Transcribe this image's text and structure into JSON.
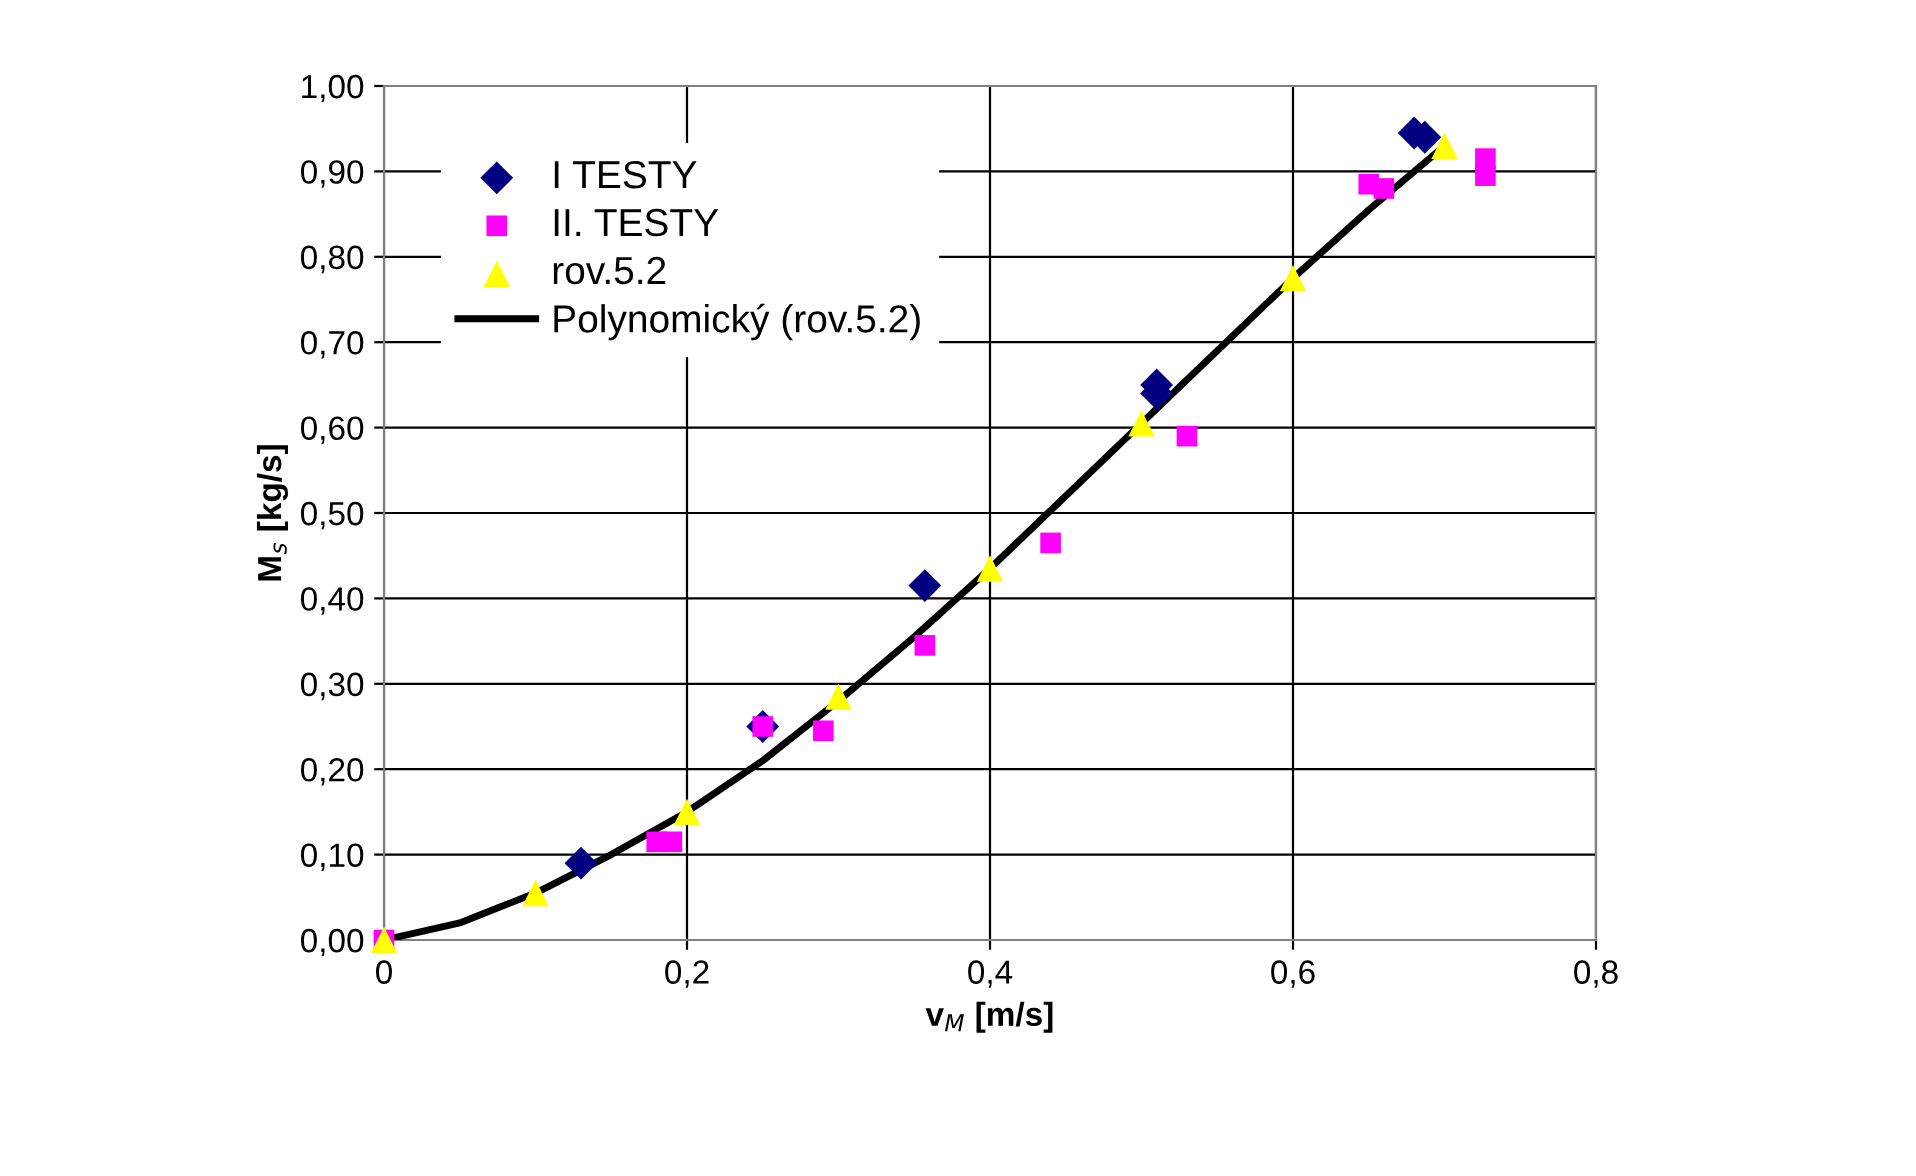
{
  "chart_data": {
    "type": "scatter",
    "xlabel": "v$_{M}$ [m/s]",
    "ylabel": "M$_{s}$ [kg/s]",
    "xlim": [
      0,
      0.8
    ],
    "xticks": [
      0,
      {
        "value": 0.2,
        "label": "0,2"
      },
      {
        "value": 0.4,
        "label": "0,4"
      },
      {
        "value": 0.6,
        "label": "0,6"
      },
      {
        "value": 0.8,
        "label": "0,8"
      }
    ],
    "ylim": [
      0,
      1
    ],
    "yticks": [
      {
        "value": 0,
        "label": "0,00"
      },
      {
        "value": 0.1,
        "label": "0,10"
      },
      {
        "value": 0.2,
        "label": "0,20"
      },
      {
        "value": 0.3,
        "label": "0,30"
      },
      {
        "value": 0.4,
        "label": "0,40"
      },
      {
        "value": 0.5,
        "label": "0,50"
      },
      {
        "value": 0.6,
        "label": "0,60"
      },
      {
        "value": 0.7,
        "label": "0,70"
      },
      {
        "value": 0.8,
        "label": "0,80"
      },
      {
        "value": 0.9,
        "label": "0,90"
      },
      {
        "value": 1,
        "label": "1,00"
      }
    ],
    "grid": true,
    "legend": "top left",
    "series": [
      {
        "name": "I TESTY",
        "color": "#000080",
        "marker": "diamond",
        "x": [
          0.13,
          0.25,
          0.357,
          0.51,
          0.51,
          0.68,
          0.687
        ],
        "values": [
          0.09,
          0.25,
          0.415,
          0.65,
          0.64,
          0.945,
          0.94
        ]
      },
      {
        "name": "II. TESTY",
        "color": "#ff00ff",
        "marker": "square",
        "x": [
          0,
          0.18,
          0.19,
          0.25,
          0.29,
          0.357,
          0.44,
          0.53,
          0.65,
          0.66,
          0.727,
          0.727
        ],
        "values": [
          0,
          0.115,
          0.115,
          0.25,
          0.245,
          0.345,
          0.465,
          0.59,
          0.885,
          0.88,
          0.915,
          0.895
        ]
      },
      {
        "name": "rov.5.2",
        "color": "#ffff00",
        "marker": "triangle",
        "x": [
          0,
          0.1,
          0.2,
          0.3,
          0.4,
          0.5,
          0.6,
          0.7
        ],
        "values": [
          0,
          0.055,
          0.15,
          0.285,
          0.435,
          0.605,
          0.775,
          0.93
        ]
      },
      {
        "name": "Polynomický (rov.5.2)",
        "type": "line",
        "color": "#000000",
        "marker": "none",
        "line_style": "solid",
        "x": [
          0,
          0.05,
          0.1,
          0.15,
          0.2,
          0.25,
          0.3,
          0.35,
          0.4,
          0.45,
          0.5,
          0.55,
          0.6,
          0.65,
          0.7
        ],
        "values": [
          0,
          0.02,
          0.055,
          0.1,
          0.15,
          0.21,
          0.28,
          0.355,
          0.435,
          0.52,
          0.605,
          0.69,
          0.775,
          0.855,
          0.93
        ]
      }
    ]
  }
}
